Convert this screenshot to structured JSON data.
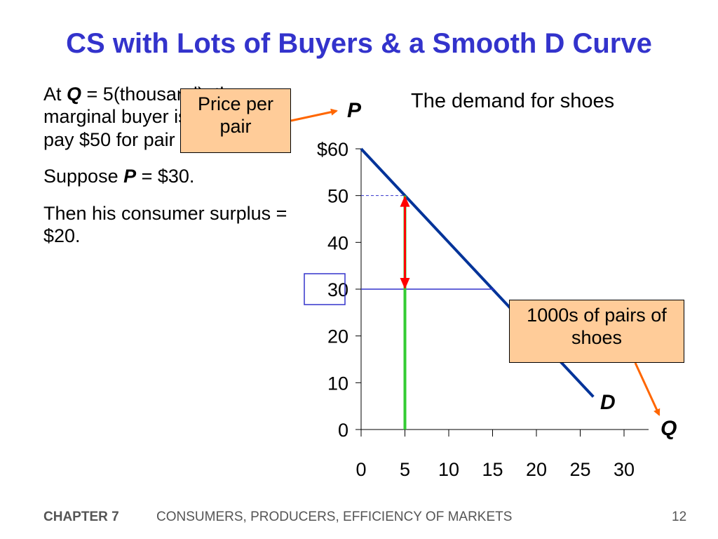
{
  "slide": {
    "title": "CS with Lots of Buyers & a Smooth D Curve",
    "bullets": [
      {
        "pre": "At ",
        "var": "Q",
        "post": " = 5(thousand), the marginal buyer is willing to pay $50 for pair of shoes."
      },
      {
        "pre": "Suppose ",
        "var": "P",
        "post": " = $30."
      },
      {
        "pre": "",
        "var": "",
        "post": "Then his consumer surplus = $20."
      }
    ],
    "price_callout": "Price per pair",
    "qty_callout": "1000s of pairs of shoes",
    "footer": {
      "chapter": "CHAPTER 7",
      "subject": "CONSUMERS, PRODUCERS, EFFICIENCY OF MARKETS",
      "page": "12"
    }
  },
  "colors": {
    "title": "#3333cc",
    "demand": "#003399",
    "callout_fill": "#ffcc99",
    "callout_arrow": "#ff6600",
    "surplus_arrow": "#ff0000",
    "willingness_bar": "#33cc33",
    "price_line": "#3333cc"
  },
  "chart_data": {
    "type": "line",
    "title": "The demand for shoes",
    "xlabel": "Q",
    "ylabel": "P",
    "xlim": [
      0,
      30
    ],
    "ylim": [
      0,
      60
    ],
    "x_ticks": [
      "0",
      "5",
      "10",
      "15",
      "20",
      "25",
      "30"
    ],
    "x_tick_values": [
      0,
      5,
      10,
      15,
      20,
      25,
      30
    ],
    "y_ticks": [
      "0",
      "10",
      "20",
      "30",
      "40",
      "50",
      "$60"
    ],
    "y_tick_values": [
      0,
      10,
      20,
      30,
      40,
      50,
      60
    ],
    "series": [
      {
        "name": "D",
        "x": [
          0,
          26.5
        ],
        "y": [
          60,
          7
        ]
      }
    ],
    "annotations": {
      "highlighted_price_label": "30",
      "market_price": 30,
      "quantity": 5,
      "willingness_to_pay": 50,
      "consumer_surplus": 20
    }
  }
}
